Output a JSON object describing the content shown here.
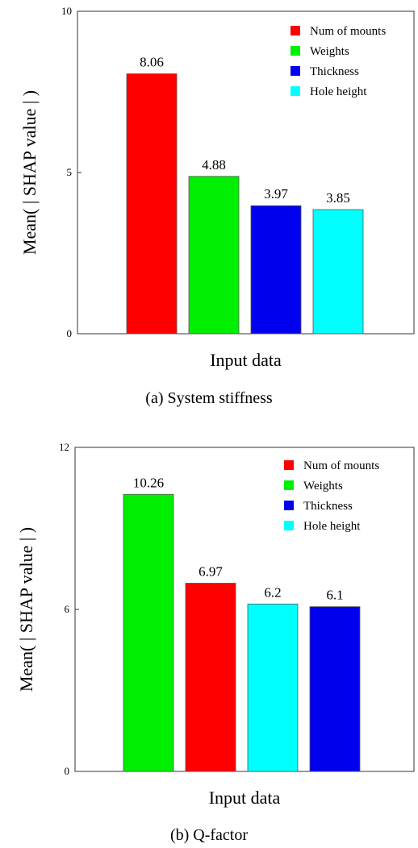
{
  "chart_data": [
    {
      "type": "bar",
      "categories": [
        "Num of mounts",
        "Weights",
        "Thickness",
        "Hole height"
      ],
      "values": [
        8.06,
        4.88,
        3.97,
        3.85
      ],
      "value_labels": [
        "8.06",
        "4.88",
        "3.97",
        "3.85"
      ],
      "colors": [
        "#ff0000",
        "#00ee00",
        "#0000ee",
        "#00ffff"
      ],
      "ylim": [
        0,
        10
      ],
      "yticks": [
        "0",
        "5",
        "10"
      ],
      "xlabel": "Input data",
      "ylabel": "Mean( | SHAP value | )",
      "legend": [
        {
          "label": "Num of mounts",
          "color": "#ff0000"
        },
        {
          "label": "Weights",
          "color": "#00ee00"
        },
        {
          "label": "Thickness",
          "color": "#0000ee"
        },
        {
          "label": "Hole height",
          "color": "#00ffff"
        }
      ],
      "legend_position": "top-right",
      "caption": "(a)  System  stiffness"
    },
    {
      "type": "bar",
      "categories": [
        "Weights",
        "Num of mounts",
        "Hole height",
        "Thickness"
      ],
      "values": [
        10.26,
        6.97,
        6.2,
        6.1
      ],
      "value_labels": [
        "10.26",
        "6.97",
        "6.2",
        "6.1"
      ],
      "colors": [
        "#00ee00",
        "#ff0000",
        "#00ffff",
        "#0000ee"
      ],
      "ylim": [
        0,
        12
      ],
      "yticks": [
        "0",
        "6",
        "12"
      ],
      "xlabel": "Input data",
      "ylabel": "Mean( | SHAP value | )",
      "legend": [
        {
          "label": "Num of mounts",
          "color": "#ff0000"
        },
        {
          "label": "Weights",
          "color": "#00ee00"
        },
        {
          "label": "Thickness",
          "color": "#0000ee"
        },
        {
          "label": "Hole height",
          "color": "#00ffff"
        }
      ],
      "legend_position": "top-right",
      "caption": "(b)  Q-factor"
    }
  ]
}
